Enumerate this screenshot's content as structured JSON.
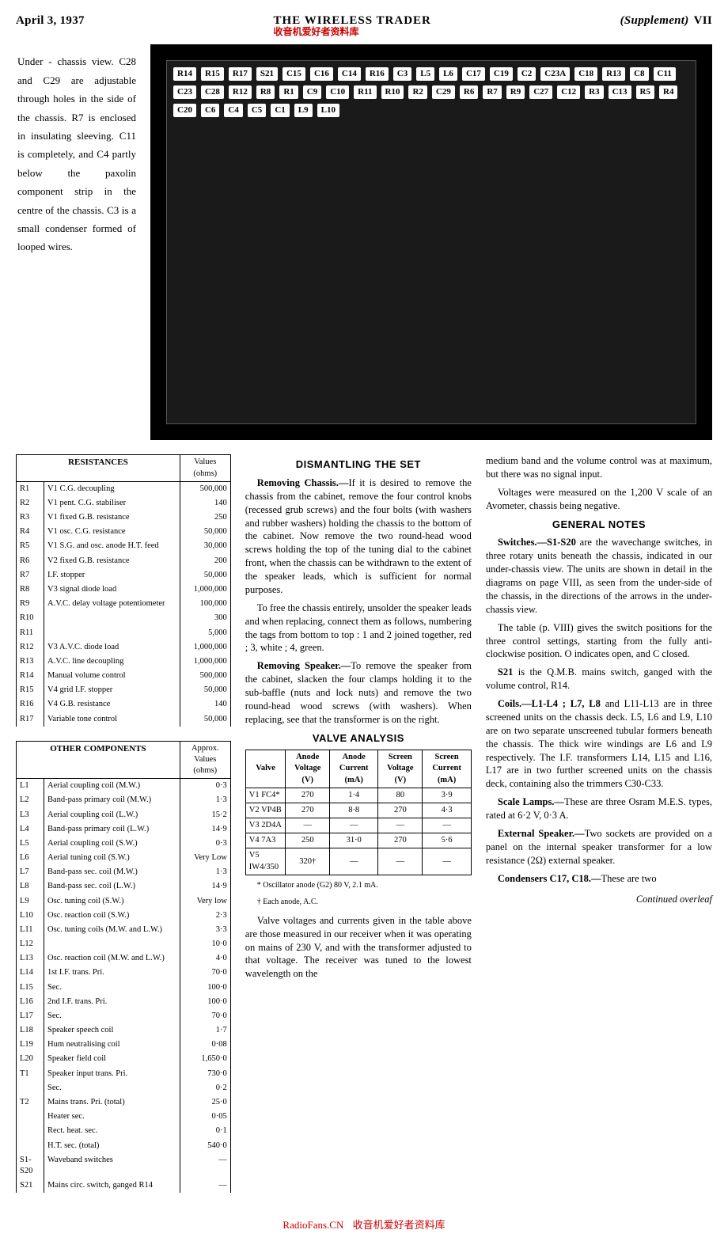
{
  "header": {
    "date": "April 3, 1937",
    "title": "THE WIRELESS TRADER",
    "overlay": "收音机爱好者资料库",
    "supp": "(Supplement)",
    "page": "VII"
  },
  "caption": "Under - chassis view. C28 and C29 are adjustable through holes in the side of the chassis. R7 is enclosed in insulating sleeving. C11 is completely, and C4 partly below the paxolin component strip in the centre of the chassis. C3 is a small condenser formed of looped wires.",
  "photo_labels": [
    "R14",
    "R15",
    "R17",
    "S21",
    "C15",
    "C16",
    "C14",
    "R16",
    "C3",
    "L5",
    "L6",
    "C17",
    "C19",
    "C2",
    "C23A",
    "C18",
    "R13",
    "C8",
    "C11",
    "C23",
    "C28",
    "R12",
    "R8",
    "R1",
    "C9",
    "C10",
    "R11",
    "R10",
    "R2",
    "C29",
    "R6",
    "R7",
    "R9",
    "C27",
    "C12",
    "R3",
    "C13",
    "R5",
    "R4",
    "C20",
    "C6",
    "C4",
    "C5",
    "C1",
    "L9",
    "L10"
  ],
  "resist_title": "RESISTANCES",
  "resist_valhdr": "Values (ohms)",
  "resistances": [
    [
      "R1",
      "V1 C.G. decoupling",
      "500,000"
    ],
    [
      "R2",
      "V1 pent. C.G. stabiliser",
      "140"
    ],
    [
      "R3",
      "V1 fixed G.B. resistance",
      "250"
    ],
    [
      "R4",
      "V1 osc. C.G. resistance",
      "50,000"
    ],
    [
      "R5",
      "V1 S.G. and osc. anode H.T. feed",
      "30,000"
    ],
    [
      "R6",
      "V2 fixed G.B. resistance",
      "200"
    ],
    [
      "R7",
      "I.F. stopper",
      "50,000"
    ],
    [
      "R8",
      "V3 signal diode load",
      "1,000,000"
    ],
    [
      "R9",
      "A.V.C. delay voltage potentiometer",
      "100,000"
    ],
    [
      "R10",
      "",
      "300"
    ],
    [
      "R11",
      "",
      "5,000"
    ],
    [
      "R12",
      "V3 A.V.C. diode load",
      "1,000,000"
    ],
    [
      "R13",
      "A.V.C. line decoupling",
      "1,000,000"
    ],
    [
      "R14",
      "Manual volume control",
      "500,000"
    ],
    [
      "R15",
      "V4 grid I.F. stopper",
      "50,000"
    ],
    [
      "R16",
      "V4 G.B. resistance",
      "140"
    ],
    [
      "R17",
      "Variable tone control",
      "50,000"
    ]
  ],
  "other_title": "OTHER COMPONENTS",
  "other_valhdr": "Approx. Values (ohms)",
  "other": [
    [
      "L1",
      "Aerial coupling coil (M.W.)",
      "0·3"
    ],
    [
      "L2",
      "Band-pass primary coil (M.W.)",
      "1·3"
    ],
    [
      "L3",
      "Aerial coupling coil (L.W.)",
      "15·2"
    ],
    [
      "L4",
      "Band-pass primary coil (L.W.)",
      "14·9"
    ],
    [
      "L5",
      "Aerial coupling coil (S.W.)",
      "0·3"
    ],
    [
      "L6",
      "Aerial tuning coil (S.W.)",
      "Very Low"
    ],
    [
      "L7",
      "Band-pass sec. coil (M.W.)",
      "1·3"
    ],
    [
      "L8",
      "Band-pass sec. coil (L.W.)",
      "14·9"
    ],
    [
      "L9",
      "Osc. tuning coil (S.W.)",
      "Very low"
    ],
    [
      "L10",
      "Osc. reaction coil (S.W.)",
      "2·3"
    ],
    [
      "L11",
      "Osc. tuning coils (M.W. and L.W.)",
      "3·3"
    ],
    [
      "L12",
      "",
      "10·0"
    ],
    [
      "L13",
      "Osc. reaction coil (M.W. and L.W.)",
      "4·0"
    ],
    [
      "L14",
      "1st I.F. trans.  Pri.",
      "70·0"
    ],
    [
      "L15",
      "                 Sec.",
      "100·0"
    ],
    [
      "L16",
      "2nd I.F. trans.  Pri.",
      "100·0"
    ],
    [
      "L17",
      "                 Sec.",
      "70·0"
    ],
    [
      "L18",
      "Speaker speech coil",
      "1·7"
    ],
    [
      "L19",
      "Hum neutralising coil",
      "0·08"
    ],
    [
      "L20",
      "Speaker field coil",
      "1,650·0"
    ],
    [
      "T1",
      "Speaker input trans.  Pri.",
      "730·0"
    ],
    [
      "",
      "                      Sec.",
      "0·2"
    ],
    [
      "T2",
      "Mains trans.  Pri. (total)",
      "25·0"
    ],
    [
      "",
      "              Heater sec.",
      "0·05"
    ],
    [
      "",
      "              Rect. heat. sec.",
      "0·1"
    ],
    [
      "",
      "              H.T. sec. (total)",
      "540·0"
    ],
    [
      "S1-S20",
      "Waveband switches",
      "—"
    ],
    [
      "S21",
      "Mains circ. switch, ganged R14",
      "—"
    ]
  ],
  "dismantle_title": "DISMANTLING THE SET",
  "dismantle": {
    "p1_lead": "Removing Chassis.—",
    "p1": "If it is desired to remove the chassis from the cabinet, remove the four control knobs (recessed grub screws) and the four bolts (with washers and rubber washers) holding the chassis to the bottom of the cabinet. Now remove the two round-head wood screws holding the top of the tuning dial to the cabinet front, when the chassis can be withdrawn to the extent of the speaker leads, which is sufficient for normal purposes.",
    "p2": "To free the chassis entirely, unsolder the speaker leads and when replacing, connect them as follows, numbering the tags from bottom to top : 1 and 2 joined together, red ; 3, white ; 4, green.",
    "p3_lead": "Removing Speaker.—",
    "p3": "To remove the speaker from the cabinet, slacken the four clamps holding it to the sub-baffle (nuts and lock nuts) and remove the two round-head wood screws (with washers). When replacing, see that the transformer is on the right."
  },
  "valve_title": "VALVE ANALYSIS",
  "valve_headers": [
    "Valve",
    "Anode Voltage (V)",
    "Anode Current (mA)",
    "Screen Voltage (V)",
    "Screen Current (mA)"
  ],
  "valves": [
    [
      "V1 FC4*",
      "270",
      "1·4",
      "80",
      "3·9"
    ],
    [
      "V2 VP4B",
      "270",
      "8·8",
      "270",
      "4·3"
    ],
    [
      "V3 2D4A",
      "—",
      "—",
      "—",
      "—"
    ],
    [
      "V4 7A3",
      "250",
      "31·0",
      "270",
      "5·6"
    ],
    [
      "V5 IW4/350",
      "320†",
      "—",
      "—",
      "—"
    ]
  ],
  "valve_note1": "* Oscillator anode (G2) 80 V, 2.1 mA.",
  "valve_note2": "† Each anode, A.C.",
  "valve_para": "Valve voltages and currents given in the table above are those measured in our receiver when it was operating on mains of 230 V, and with the transformer adjusted to that voltage. The receiver was tuned to the lowest wavelength on the",
  "medium": "medium band and the volume control was at maximum, but there was no signal input.",
  "voltages_para": "Voltages were measured on the 1,200 V scale of an Avometer, chassis being negative.",
  "general_title": "GENERAL NOTES",
  "gen": {
    "sw_lead": "Switches.—S1-S20",
    "sw": " are the wavechange switches, in three rotary units beneath the chassis, indicated in our under-chassis view. The units are shown in detail in the diagrams on page VIII, as seen from the under-side of the chassis, in the directions of the arrows in the under-chassis view.",
    "sw2": "The table (p. VIII) gives the switch positions for the three control settings, starting from the fully anti-clockwise position. O indicates open, and C closed.",
    "s21_lead": "S21",
    "s21": " is the Q.M.B. mains switch, ganged with the volume control, R14.",
    "coils_lead": "Coils.—L1-L4 ; L7, L8",
    "coils": " and L11-L13 are in three screened units on the chassis deck. L5, L6 and L9, L10 are on two separate unscreened tubular formers beneath the chassis. The thick wire windings are L6 and L9 respectively. The I.F. transformers L14, L15 and L16, L17 are in two further screened units on the chassis deck, containing also the trimmers C30-C33.",
    "lamps_lead": "Scale Lamps.—",
    "lamps": "These are three Osram M.E.S. types, rated at 6·2 V, 0·3 A.",
    "ext_lead": "External Speaker.—",
    "ext": "Two sockets are provided on a panel on the internal speaker transformer for a low resistance (2Ω) external speaker.",
    "cond_lead": "Condensers C17, C18.—",
    "cond": "These are two"
  },
  "continued": "Continued overleaf",
  "footer_site": "RadioFans.CN",
  "footer_cn": "收音机爱好者资料库"
}
